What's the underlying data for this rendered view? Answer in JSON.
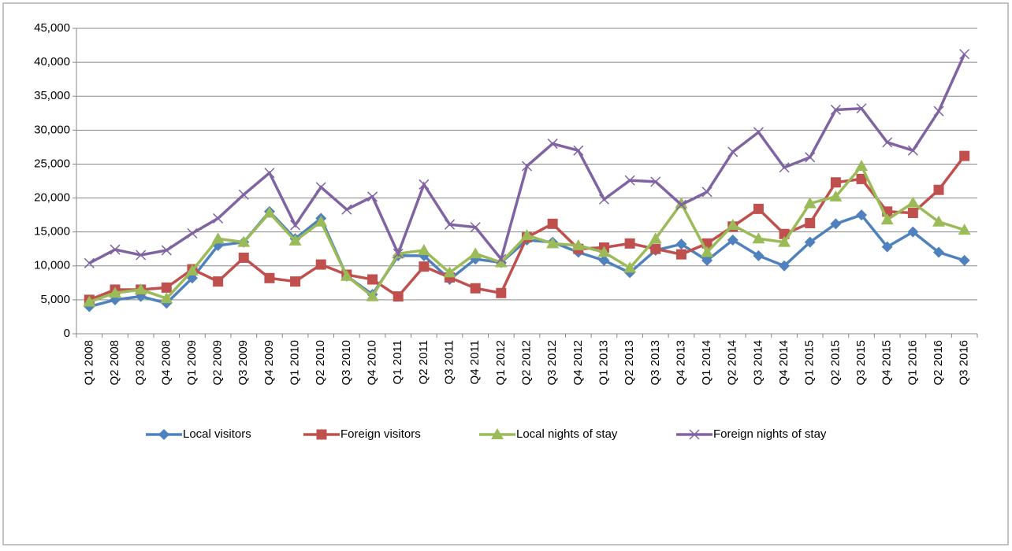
{
  "chart_data": {
    "type": "line",
    "categories": [
      "Q1 2008",
      "Q2 2008",
      "Q3 2008",
      "Q4 2008",
      "Q1 2009",
      "Q2 2009",
      "Q3 2009",
      "Q4 2009",
      "Q1 2010",
      "Q2 2010",
      "Q3 2010",
      "Q4 2010",
      "Q1 2011",
      "Q2 2011",
      "Q3 2011",
      "Q4 2011",
      "Q1 2012",
      "Q2 2012",
      "Q3 2012",
      "Q4 2012",
      "Q1 2013",
      "Q2 2013",
      "Q3 2013",
      "Q4 2013",
      "Q1 2014",
      "Q2 2014",
      "Q3 2014",
      "Q4 2014",
      "Q1 2015",
      "Q2 2015",
      "Q3 2015",
      "Q4 2015",
      "Q1 2016",
      "Q2 2016",
      "Q3 2016"
    ],
    "series": [
      {
        "name": "Local visitors",
        "color": "#4f81bd",
        "marker": "diamond",
        "values": [
          4000,
          5000,
          5500,
          4500,
          8200,
          13000,
          13500,
          18000,
          14000,
          17000,
          8500,
          5800,
          11500,
          11500,
          8000,
          11000,
          10500,
          13800,
          13500,
          12000,
          10800,
          9000,
          12300,
          13200,
          10800,
          13800,
          11500,
          10000,
          13500,
          16200,
          17500,
          12800,
          15000,
          12000,
          10800
        ]
      },
      {
        "name": "Foreign visitors",
        "color": "#c0504d",
        "marker": "square",
        "values": [
          5000,
          6500,
          6500,
          6800,
          9500,
          7700,
          11200,
          8200,
          7700,
          10200,
          8700,
          8000,
          5500,
          9900,
          8300,
          6700,
          6000,
          14200,
          16200,
          12500,
          12700,
          13300,
          12500,
          11700,
          13300,
          15800,
          18400,
          14700,
          16300,
          22300,
          22800,
          18000,
          17800,
          21200,
          26200
        ]
      },
      {
        "name": "Local nights of stay",
        "color": "#9bbb59",
        "marker": "triangle",
        "values": [
          4700,
          6000,
          6500,
          5200,
          9300,
          14000,
          13500,
          17800,
          13700,
          16500,
          8500,
          5500,
          11800,
          12300,
          9000,
          11800,
          10500,
          14500,
          13300,
          13000,
          12000,
          9700,
          14000,
          19200,
          12000,
          16000,
          14000,
          13500,
          19200,
          20200,
          24700,
          16800,
          19300,
          16500,
          15300
        ]
      },
      {
        "name": "Foreign nights of stay",
        "color": "#8064a2",
        "marker": "x",
        "values": [
          10400,
          12400,
          11600,
          12300,
          14800,
          17000,
          20500,
          23700,
          16000,
          21600,
          18300,
          20200,
          11800,
          22000,
          16100,
          15700,
          11000,
          24700,
          28000,
          27000,
          19800,
          22600,
          22400,
          19000,
          20900,
          26800,
          29700,
          24500,
          26000,
          33000,
          33200,
          28200,
          27000,
          32800,
          41200
        ]
      }
    ],
    "ylim": [
      0,
      45000
    ],
    "yticks": [
      0,
      {
        "value": 5000,
        "label": "5,000"
      },
      {
        "value": 10000,
        "label": "10,000"
      },
      {
        "value": 15000,
        "label": "15,000"
      },
      {
        "value": 20000,
        "label": "20,000"
      },
      {
        "value": 25000,
        "label": "25,000"
      },
      {
        "value": 30000,
        "label": "30,000"
      },
      {
        "value": 35000,
        "label": "35,000"
      },
      {
        "value": 40000,
        "label": "40,000"
      },
      {
        "value": 45000,
        "label": "45,000"
      }
    ],
    "grid": true,
    "legend": "bottom"
  }
}
